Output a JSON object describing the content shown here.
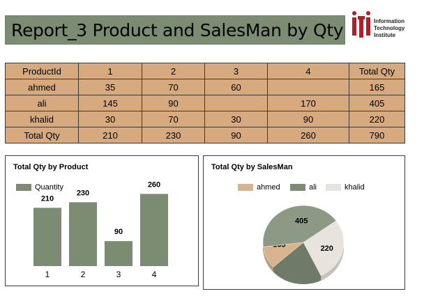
{
  "header": {
    "title": "Report_3 Product and SalesMan by Qty",
    "logo_lines": [
      "Information",
      "Technology",
      "Institute"
    ]
  },
  "table": {
    "columns": [
      "ProductId",
      "1",
      "2",
      "3",
      "4",
      "Total Qty"
    ],
    "rows": [
      [
        "ahmed",
        "35",
        "70",
        "60",
        "",
        "165"
      ],
      [
        "ali",
        "145",
        "90",
        "",
        "170",
        "405"
      ],
      [
        "khalid",
        "30",
        "70",
        "30",
        "90",
        "220"
      ],
      [
        "Total Qty",
        "210",
        "230",
        "90",
        "260",
        "790"
      ]
    ]
  },
  "colors": {
    "green": "#7b8c73",
    "tan": "#d6a97f",
    "cream": "#e8e3dc"
  },
  "chart_data": [
    {
      "type": "bar",
      "title": "Total Qty by Product",
      "categories": [
        "1",
        "2",
        "3",
        "4"
      ],
      "series": [
        {
          "name": "Quantity",
          "values": [
            210,
            230,
            90,
            260
          ],
          "color": "#7b8c73"
        }
      ],
      "ylim": [
        0,
        300
      ],
      "grid": false,
      "legend": "top-left"
    },
    {
      "type": "pie",
      "title": "Total Qty by SalesMan",
      "labels": [
        "ahmed",
        "ali",
        "khalid"
      ],
      "values": [
        165,
        405,
        220
      ],
      "colors": [
        "#d7b48f",
        "#8c9a85",
        "#e8e3dc"
      ],
      "legend": "top"
    }
  ]
}
